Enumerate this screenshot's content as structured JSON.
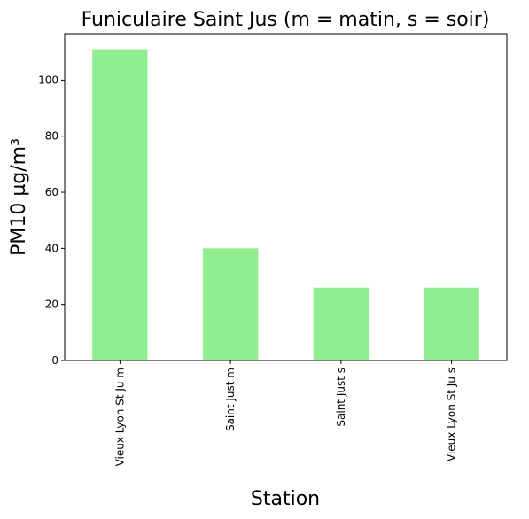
{
  "chart_data": {
    "type": "bar",
    "title": "Funiculaire Saint Jus (m = matin, s = soir)",
    "xlabel": "Station",
    "ylabel": "PM10 µg/m³",
    "categories": [
      "Vieux Lyon St Ju m",
      "Saint Just m",
      "Saint Just s",
      "Vieux Lyon St Ju s"
    ],
    "values": [
      111,
      40,
      26,
      26
    ],
    "ylim": [
      0,
      116.55
    ],
    "yticks": [
      0,
      20,
      40,
      60,
      80,
      100
    ],
    "bar_color": "#90ee90",
    "grid": false,
    "legend": "none"
  }
}
